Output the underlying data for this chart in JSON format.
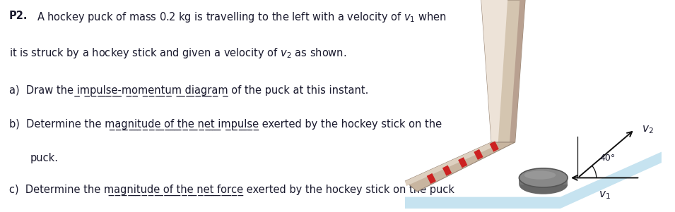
{
  "bg_color": "#ffffff",
  "text_color": "#1a1a2e",
  "text_fontsize": 10.5,
  "angle_label": "40°",
  "v1_label": "$v_1$",
  "v2_label": "$v_2$",
  "shaft_color": "#D4C5B0",
  "shaft_light": "#EDE3D8",
  "shaft_dark": "#B8A090",
  "blade_color": "#C8B5A0",
  "blade_light": "#DDD0C0",
  "stripe_color": "#CC2222",
  "ice_color": "#A8D4E8",
  "puck_color": "#888888",
  "puck_edge": "#555555",
  "puck_light": "#AAAAAA",
  "puck_dark": "#666666",
  "arrow_color": "#111111"
}
